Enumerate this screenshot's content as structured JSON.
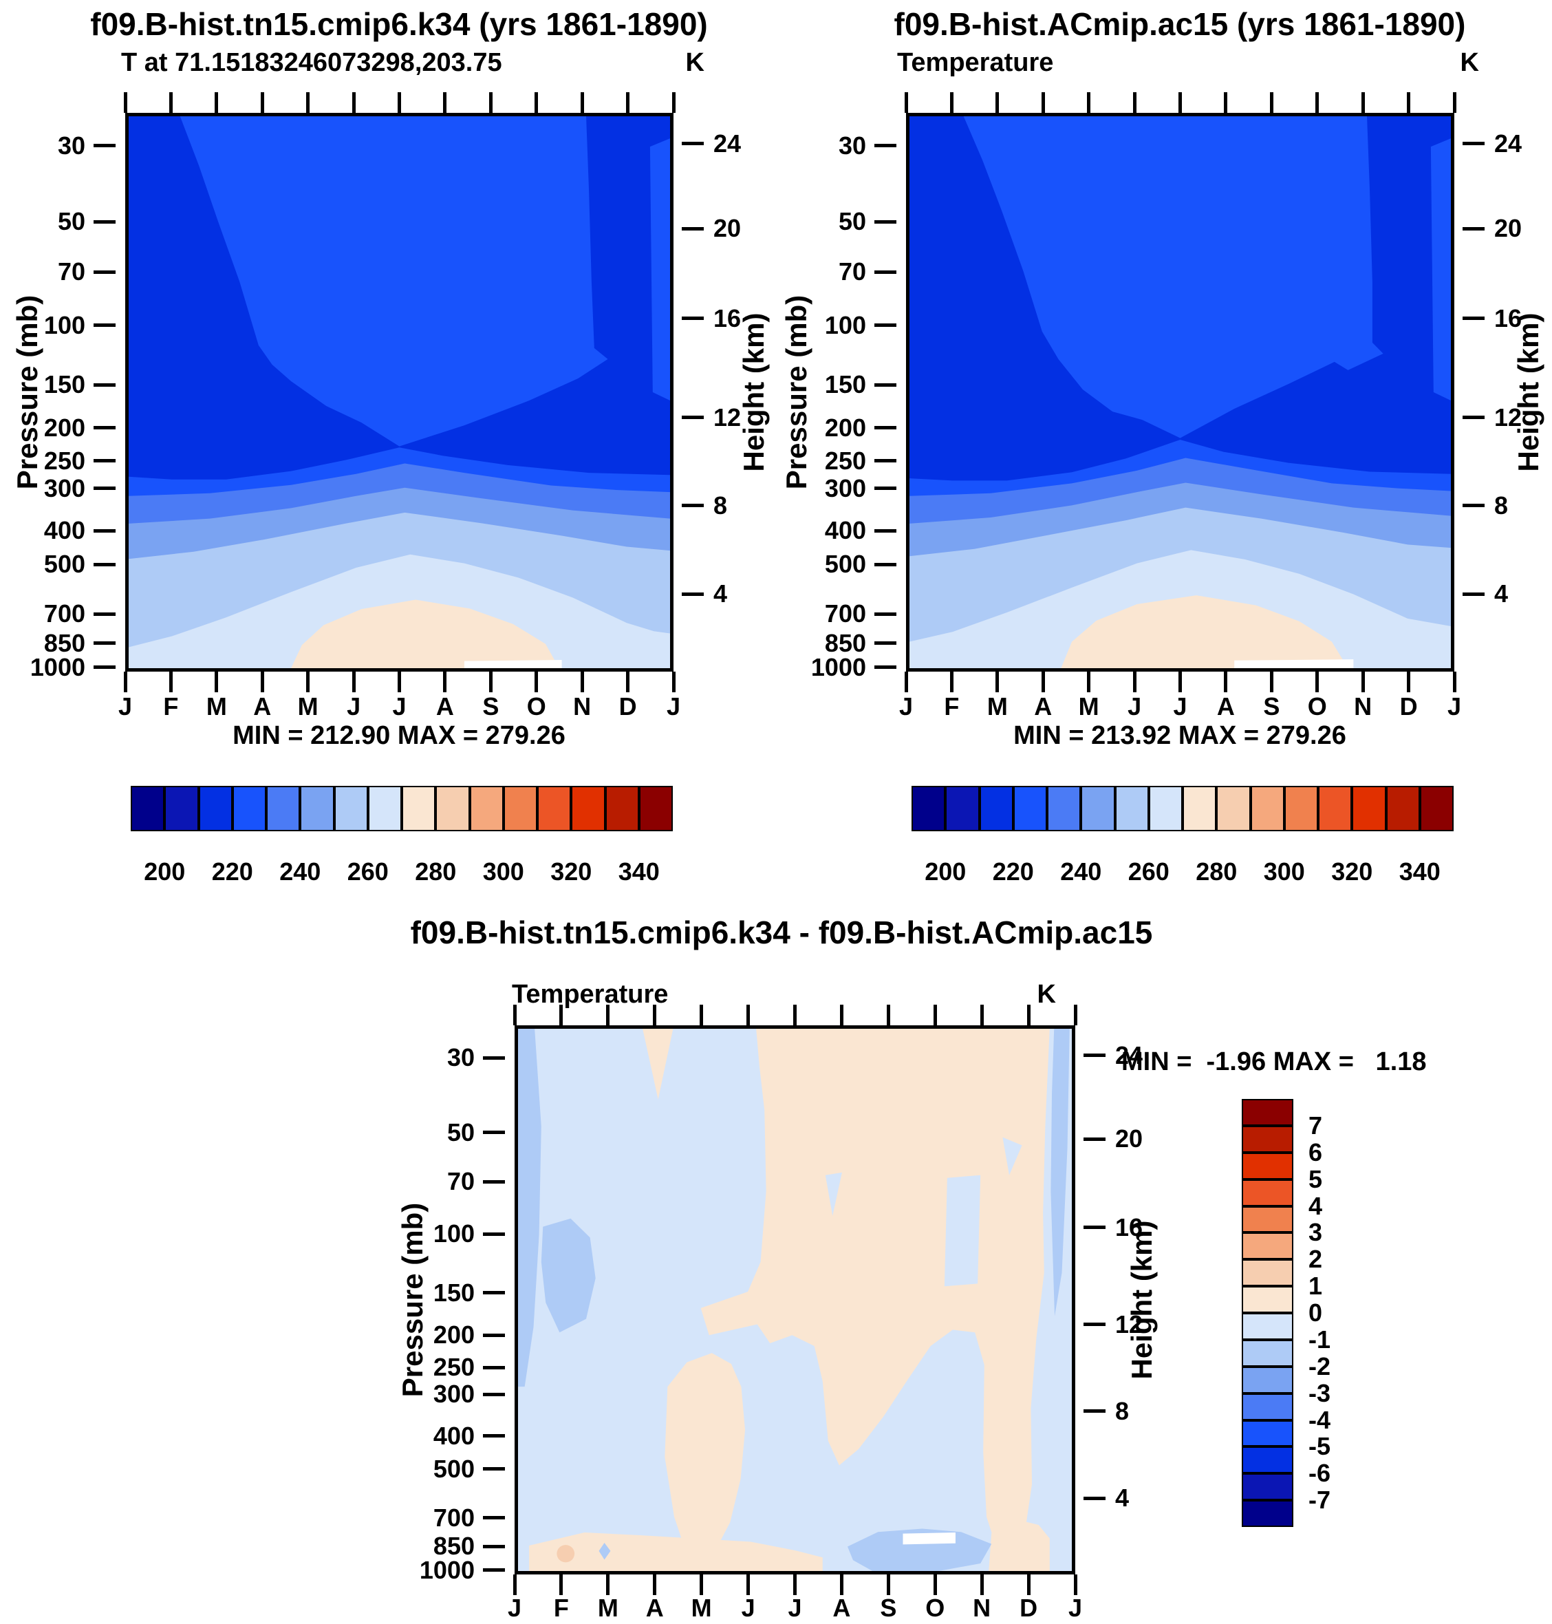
{
  "axes": {
    "months": {
      "labels": [
        "J",
        "F",
        "M",
        "A",
        "M",
        "J",
        "J",
        "A",
        "S",
        "O",
        "N",
        "D",
        "J"
      ]
    },
    "pressure": {
      "label": "Pressure (mb)",
      "ticks": [
        "30",
        "50",
        "70",
        "100",
        "150",
        "200",
        "250",
        "300",
        "400",
        "500",
        "700",
        "850",
        "1000"
      ],
      "fracs": [
        0.059,
        0.195,
        0.285,
        0.38,
        0.487,
        0.564,
        0.623,
        0.672,
        0.748,
        0.808,
        0.897,
        0.949,
        0.992
      ]
    },
    "height": {
      "label": "Height (km)",
      "ticks": [
        "24",
        "20",
        "16",
        "12",
        "8",
        "4"
      ],
      "fracs": [
        0.055,
        0.207,
        0.368,
        0.545,
        0.703,
        0.861
      ]
    }
  },
  "panels": {
    "top_left": {
      "title": "f09.B-hist.tn15.cmip6.k34 (yrs 1861-1890)",
      "field_label": "T at 71.15183246073298,203.75",
      "units": "K",
      "min_max": "MIN = 212.90 MAX = 279.26"
    },
    "top_right": {
      "title": "f09.B-hist.ACmip.ac15 (yrs 1861-1890)",
      "field_label": "Temperature",
      "units": "K",
      "min_max": "MIN = 213.92 MAX = 279.26"
    },
    "bottom": {
      "title": "f09.B-hist.tn15.cmip6.k34 - f09.B-hist.ACmip.ac15",
      "field_label": "Temperature",
      "units": "K",
      "min_max": "MIN =  -1.96 MAX =   1.18"
    }
  },
  "colorbar_top": {
    "labels": [
      "200",
      "220",
      "240",
      "260",
      "280",
      "300",
      "320",
      "340"
    ],
    "colors": [
      "#00008B",
      "#0B16B4",
      "#0330E3",
      "#1853FC",
      "#4B7BF5",
      "#7AA3F2",
      "#AECBF6",
      "#D5E5FA",
      "#FAE6D2",
      "#F6CEB0",
      "#F5A87D",
      "#F0814E",
      "#EC5526",
      "#E13000",
      "#B81C00",
      "#8B0000"
    ]
  },
  "colorbar_diff": {
    "labels": [
      "7",
      "6",
      "5",
      "4",
      "3",
      "2",
      "1",
      "0",
      "-1",
      "-2",
      "-3",
      "-4",
      "-5",
      "-6",
      "-7"
    ],
    "colors": [
      "#8B0000",
      "#B81C00",
      "#E13000",
      "#EC5526",
      "#F0814E",
      "#F5A87D",
      "#F6CEB0",
      "#FAE6D2",
      "#D5E5FA",
      "#AECBF6",
      "#7AA3F2",
      "#4B7BF5",
      "#1853FC",
      "#0330E3",
      "#0B16B4",
      "#00008B"
    ]
  },
  "chart_data": [
    {
      "type": "filled_contour",
      "panel": "top-left",
      "title": "f09.B-hist.tn15.cmip6.k34 (yrs 1861-1890)",
      "variable": "T at 71.15183246073298,203.75",
      "units": "K",
      "x_axis": {
        "categories": [
          "J",
          "F",
          "M",
          "A",
          "M",
          "J",
          "J",
          "A",
          "S",
          "O",
          "N",
          "D",
          "J"
        ]
      },
      "y_axis_left": {
        "label": "Pressure (mb)",
        "scale": "log",
        "ticks": [
          30,
          50,
          70,
          100,
          150,
          200,
          250,
          300,
          400,
          500,
          700,
          850,
          1000
        ]
      },
      "y_axis_right": {
        "label": "Height (km)",
        "ticks": [
          24,
          20,
          16,
          12,
          8,
          4
        ]
      },
      "min": 212.9,
      "max": 279.26,
      "contour_levels": [
        200,
        210,
        220,
        230,
        240,
        250,
        260,
        270,
        280,
        290,
        300,
        310,
        320,
        330,
        340
      ],
      "labeled_levels": [
        200,
        220,
        240,
        260,
        280,
        300,
        320,
        340
      ],
      "legend_position": "bottom",
      "description": "Annual cycle of temperature vs pressure; cold (210-230 K) upper levels, warm (270-280 K) surface maximum in summer months"
    },
    {
      "type": "filled_contour",
      "panel": "top-right",
      "title": "f09.B-hist.ACmip.ac15 (yrs 1861-1890)",
      "variable": "Temperature",
      "units": "K",
      "x_axis": {
        "categories": [
          "J",
          "F",
          "M",
          "A",
          "M",
          "J",
          "J",
          "A",
          "S",
          "O",
          "N",
          "D",
          "J"
        ]
      },
      "y_axis_left": {
        "label": "Pressure (mb)",
        "scale": "log",
        "ticks": [
          30,
          50,
          70,
          100,
          150,
          200,
          250,
          300,
          400,
          500,
          700,
          850,
          1000
        ]
      },
      "y_axis_right": {
        "label": "Height (km)",
        "ticks": [
          24,
          20,
          16,
          12,
          8,
          4
        ]
      },
      "min": 213.92,
      "max": 279.26,
      "contour_levels": [
        200,
        210,
        220,
        230,
        240,
        250,
        260,
        270,
        280,
        290,
        300,
        310,
        320,
        330,
        340
      ],
      "labeled_levels": [
        200,
        220,
        240,
        260,
        280,
        300,
        320,
        340
      ],
      "legend_position": "bottom",
      "description": "Annual cycle of temperature vs pressure; same structure as top-left panel"
    },
    {
      "type": "filled_contour",
      "panel": "bottom",
      "title": "f09.B-hist.tn15.cmip6.k34 - f09.B-hist.ACmip.ac15",
      "variable": "Temperature",
      "units": "K",
      "x_axis": {
        "categories": [
          "J",
          "F",
          "M",
          "A",
          "M",
          "J",
          "J",
          "A",
          "S",
          "O",
          "N",
          "D",
          "J"
        ]
      },
      "y_axis_left": {
        "label": "Pressure (mb)",
        "scale": "log",
        "ticks": [
          30,
          50,
          70,
          100,
          150,
          200,
          250,
          300,
          400,
          500,
          700,
          850,
          1000
        ]
      },
      "y_axis_right": {
        "label": "Height (km)",
        "ticks": [
          24,
          20,
          16,
          12,
          8,
          4
        ]
      },
      "min": -1.96,
      "max": 1.18,
      "contour_levels": [
        -7,
        -6,
        -5,
        -4,
        -3,
        -2,
        -1,
        0,
        1,
        2,
        3,
        4,
        5,
        6,
        7
      ],
      "legend_position": "right",
      "description": "Difference field: values between -2 and +2 K; negative (light/medium blue) in winter-spring left half, positive (cream) in summer-autumn right half"
    }
  ]
}
